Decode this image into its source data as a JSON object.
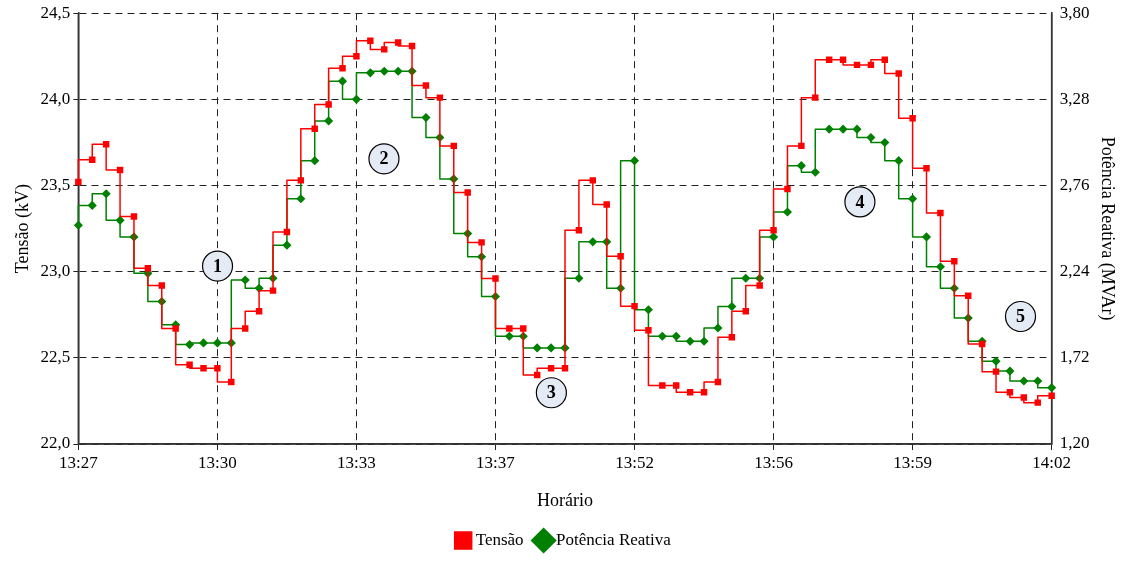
{
  "chart_data": {
    "type": "step",
    "xlabel": "Horário",
    "ylabel": "Tensão (kV)",
    "y2label": "Potência Reativa (MVAr)",
    "categories": [
      "13:27",
      null,
      null,
      null,
      null,
      null,
      null,
      null,
      null,
      null,
      "13:30",
      null,
      null,
      null,
      null,
      null,
      null,
      null,
      null,
      null,
      "13:33",
      null,
      null,
      null,
      null,
      null,
      null,
      null,
      null,
      null,
      "13:37",
      null,
      null,
      null,
      null,
      null,
      null,
      null,
      null,
      null,
      "13:52",
      null,
      null,
      null,
      null,
      null,
      null,
      null,
      null,
      null,
      "13:56",
      null,
      null,
      null,
      null,
      null,
      null,
      null,
      null,
      null,
      "13:59",
      null,
      null,
      null,
      null,
      null,
      null,
      null,
      null,
      null,
      "14:02"
    ],
    "series": [
      {
        "name": "Tensão",
        "color": "#ff0000",
        "marker": "square",
        "values": [
          23.52,
          23.65,
          23.74,
          23.59,
          23.32,
          23.02,
          22.92,
          22.67,
          22.46,
          22.44,
          22.44,
          22.36,
          22.67,
          22.77,
          22.89,
          23.23,
          23.53,
          23.83,
          23.97,
          24.18,
          24.25,
          24.34,
          24.29,
          24.33,
          24.31,
          24.08,
          24.01,
          23.73,
          23.46,
          23.17,
          22.96,
          22.67,
          22.67,
          22.4,
          22.44,
          22.44,
          23.24,
          23.53,
          23.39,
          23.09,
          22.8,
          22.66,
          22.34,
          22.34,
          22.3,
          22.3,
          22.36,
          22.62,
          22.77,
          22.92,
          23.24,
          23.48,
          23.73,
          24.01,
          24.23,
          24.23,
          24.2,
          24.2,
          24.23,
          24.15,
          23.89,
          23.6,
          23.34,
          23.06,
          22.86,
          22.58,
          22.42,
          22.3,
          22.27,
          22.24,
          22.28
        ]
      },
      {
        "name": "Potência Reativa",
        "color": "#008000",
        "marker": "diamond",
        "axis": "y2",
        "values": [
          2.52,
          2.64,
          2.71,
          2.55,
          2.45,
          2.23,
          2.06,
          1.92,
          1.8,
          1.81,
          1.81,
          1.81,
          2.19,
          2.14,
          2.2,
          2.4,
          2.68,
          2.91,
          3.15,
          3.39,
          3.28,
          3.44,
          3.45,
          3.45,
          3.45,
          3.17,
          3.05,
          2.8,
          2.47,
          2.33,
          2.09,
          1.85,
          1.85,
          1.78,
          1.78,
          1.78,
          2.2,
          2.42,
          2.42,
          2.14,
          2.91,
          2.01,
          1.85,
          1.85,
          1.82,
          1.82,
          1.9,
          2.03,
          2.2,
          2.2,
          2.45,
          2.6,
          2.88,
          2.84,
          3.1,
          3.1,
          3.1,
          3.05,
          3.02,
          2.91,
          2.68,
          2.45,
          2.27,
          2.14,
          1.96,
          1.82,
          1.7,
          1.64,
          1.58,
          1.58,
          1.54
        ]
      }
    ],
    "ylim": [
      22.0,
      24.5
    ],
    "yticks": [
      {
        "value": 22.0,
        "label": "22,0"
      },
      {
        "value": 22.5,
        "label": "22,5"
      },
      {
        "value": 23.0,
        "label": "23,0"
      },
      {
        "value": 23.5,
        "label": "23,5"
      },
      {
        "value": 24.0,
        "label": "24,0"
      },
      {
        "value": 24.5,
        "label": "24,5"
      }
    ],
    "y2lim": [
      1.2,
      3.8
    ],
    "y2ticks": [
      {
        "value": 1.2,
        "label": "1,20"
      },
      {
        "value": 1.72,
        "label": "1,72"
      },
      {
        "value": 2.24,
        "label": "2,24"
      },
      {
        "value": 2.76,
        "label": "2,76"
      },
      {
        "value": 3.28,
        "label": "3,28"
      },
      {
        "value": 3.8,
        "label": "3,80"
      }
    ],
    "grid": true,
    "legend": "bottom",
    "line_style": "solid",
    "annotations": [
      "1",
      "2",
      "3",
      "4",
      "5"
    ]
  }
}
